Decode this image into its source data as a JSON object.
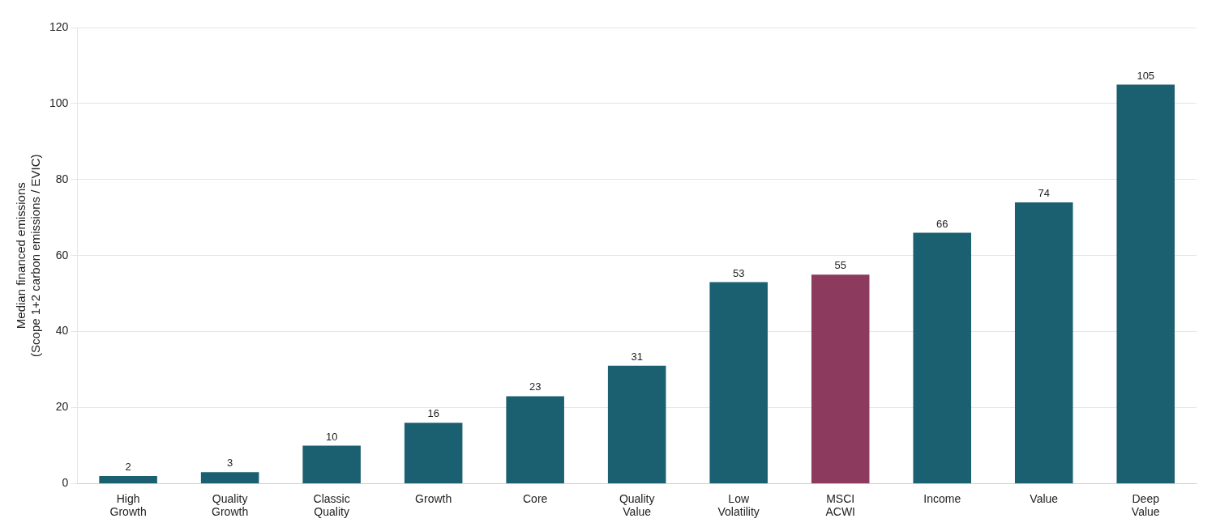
{
  "chart_data": {
    "type": "bar",
    "categories": [
      "High\nGrowth",
      "Quality\nGrowth",
      "Classic\nQuality",
      "Growth",
      "Core",
      "Quality\nValue",
      "Low\nVolatility",
      "MSCI\nACWI",
      "Income",
      "Value",
      "Deep\nValue"
    ],
    "values": [
      2,
      3,
      10,
      16,
      23,
      31,
      53,
      55,
      66,
      74,
      105
    ],
    "colors": [
      "#1a6070",
      "#1a6070",
      "#1a6070",
      "#1a6070",
      "#1a6070",
      "#1a6070",
      "#1a6070",
      "#8c3a5e",
      "#1a6070",
      "#1a6070",
      "#1a6070"
    ],
    "ylabel": "Median financed emissions\n(Scope 1+2 carbon emissions / EVIC)",
    "ylim": [
      0,
      120
    ],
    "yticks": [
      0,
      20,
      40,
      60,
      80,
      100,
      120
    ],
    "grid": true,
    "data_labels": true
  }
}
